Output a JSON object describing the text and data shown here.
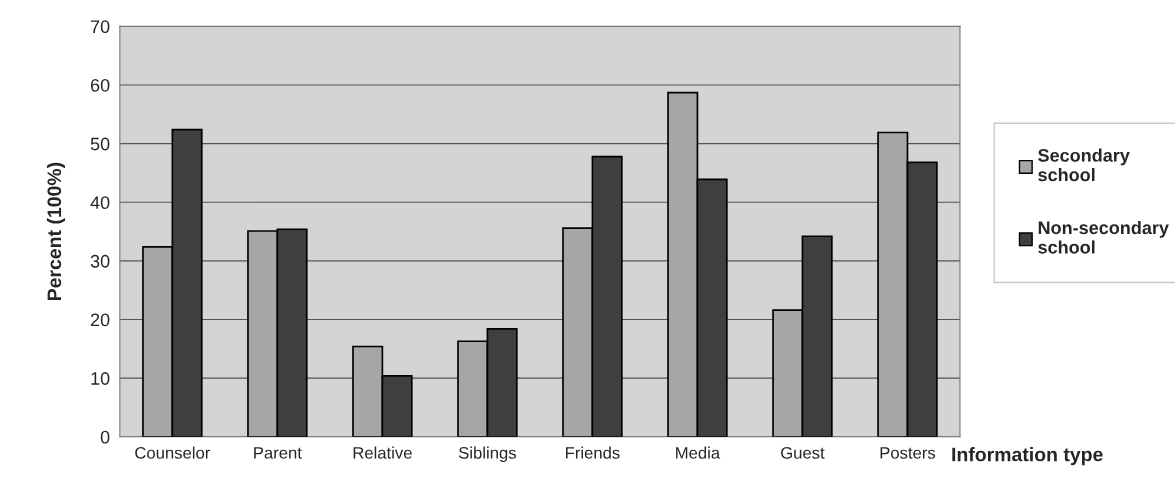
{
  "chart_data": {
    "type": "bar",
    "xlabel": "Information type",
    "ylabel": "Percent (100%)",
    "categories": [
      "Counselor",
      "Parent",
      "Relative",
      "Siblings",
      "Friends",
      "Media",
      "Guest",
      "Posters"
    ],
    "series": [
      {
        "name": "Secondary school",
        "color": "#a6a6a6",
        "values": [
          32.4,
          35.1,
          15.4,
          16.3,
          35.6,
          58.7,
          21.6,
          51.9
        ]
      },
      {
        "name": "Non-secondary school",
        "color": "#3f3f3f",
        "values": [
          52.4,
          35.4,
          10.4,
          18.4,
          47.8,
          43.9,
          34.2,
          46.8
        ]
      }
    ],
    "ylim": [
      0,
      70
    ],
    "yticks": [
      0,
      10,
      20,
      30,
      40,
      50,
      60,
      70
    ],
    "grid": "y",
    "legend": "right"
  }
}
